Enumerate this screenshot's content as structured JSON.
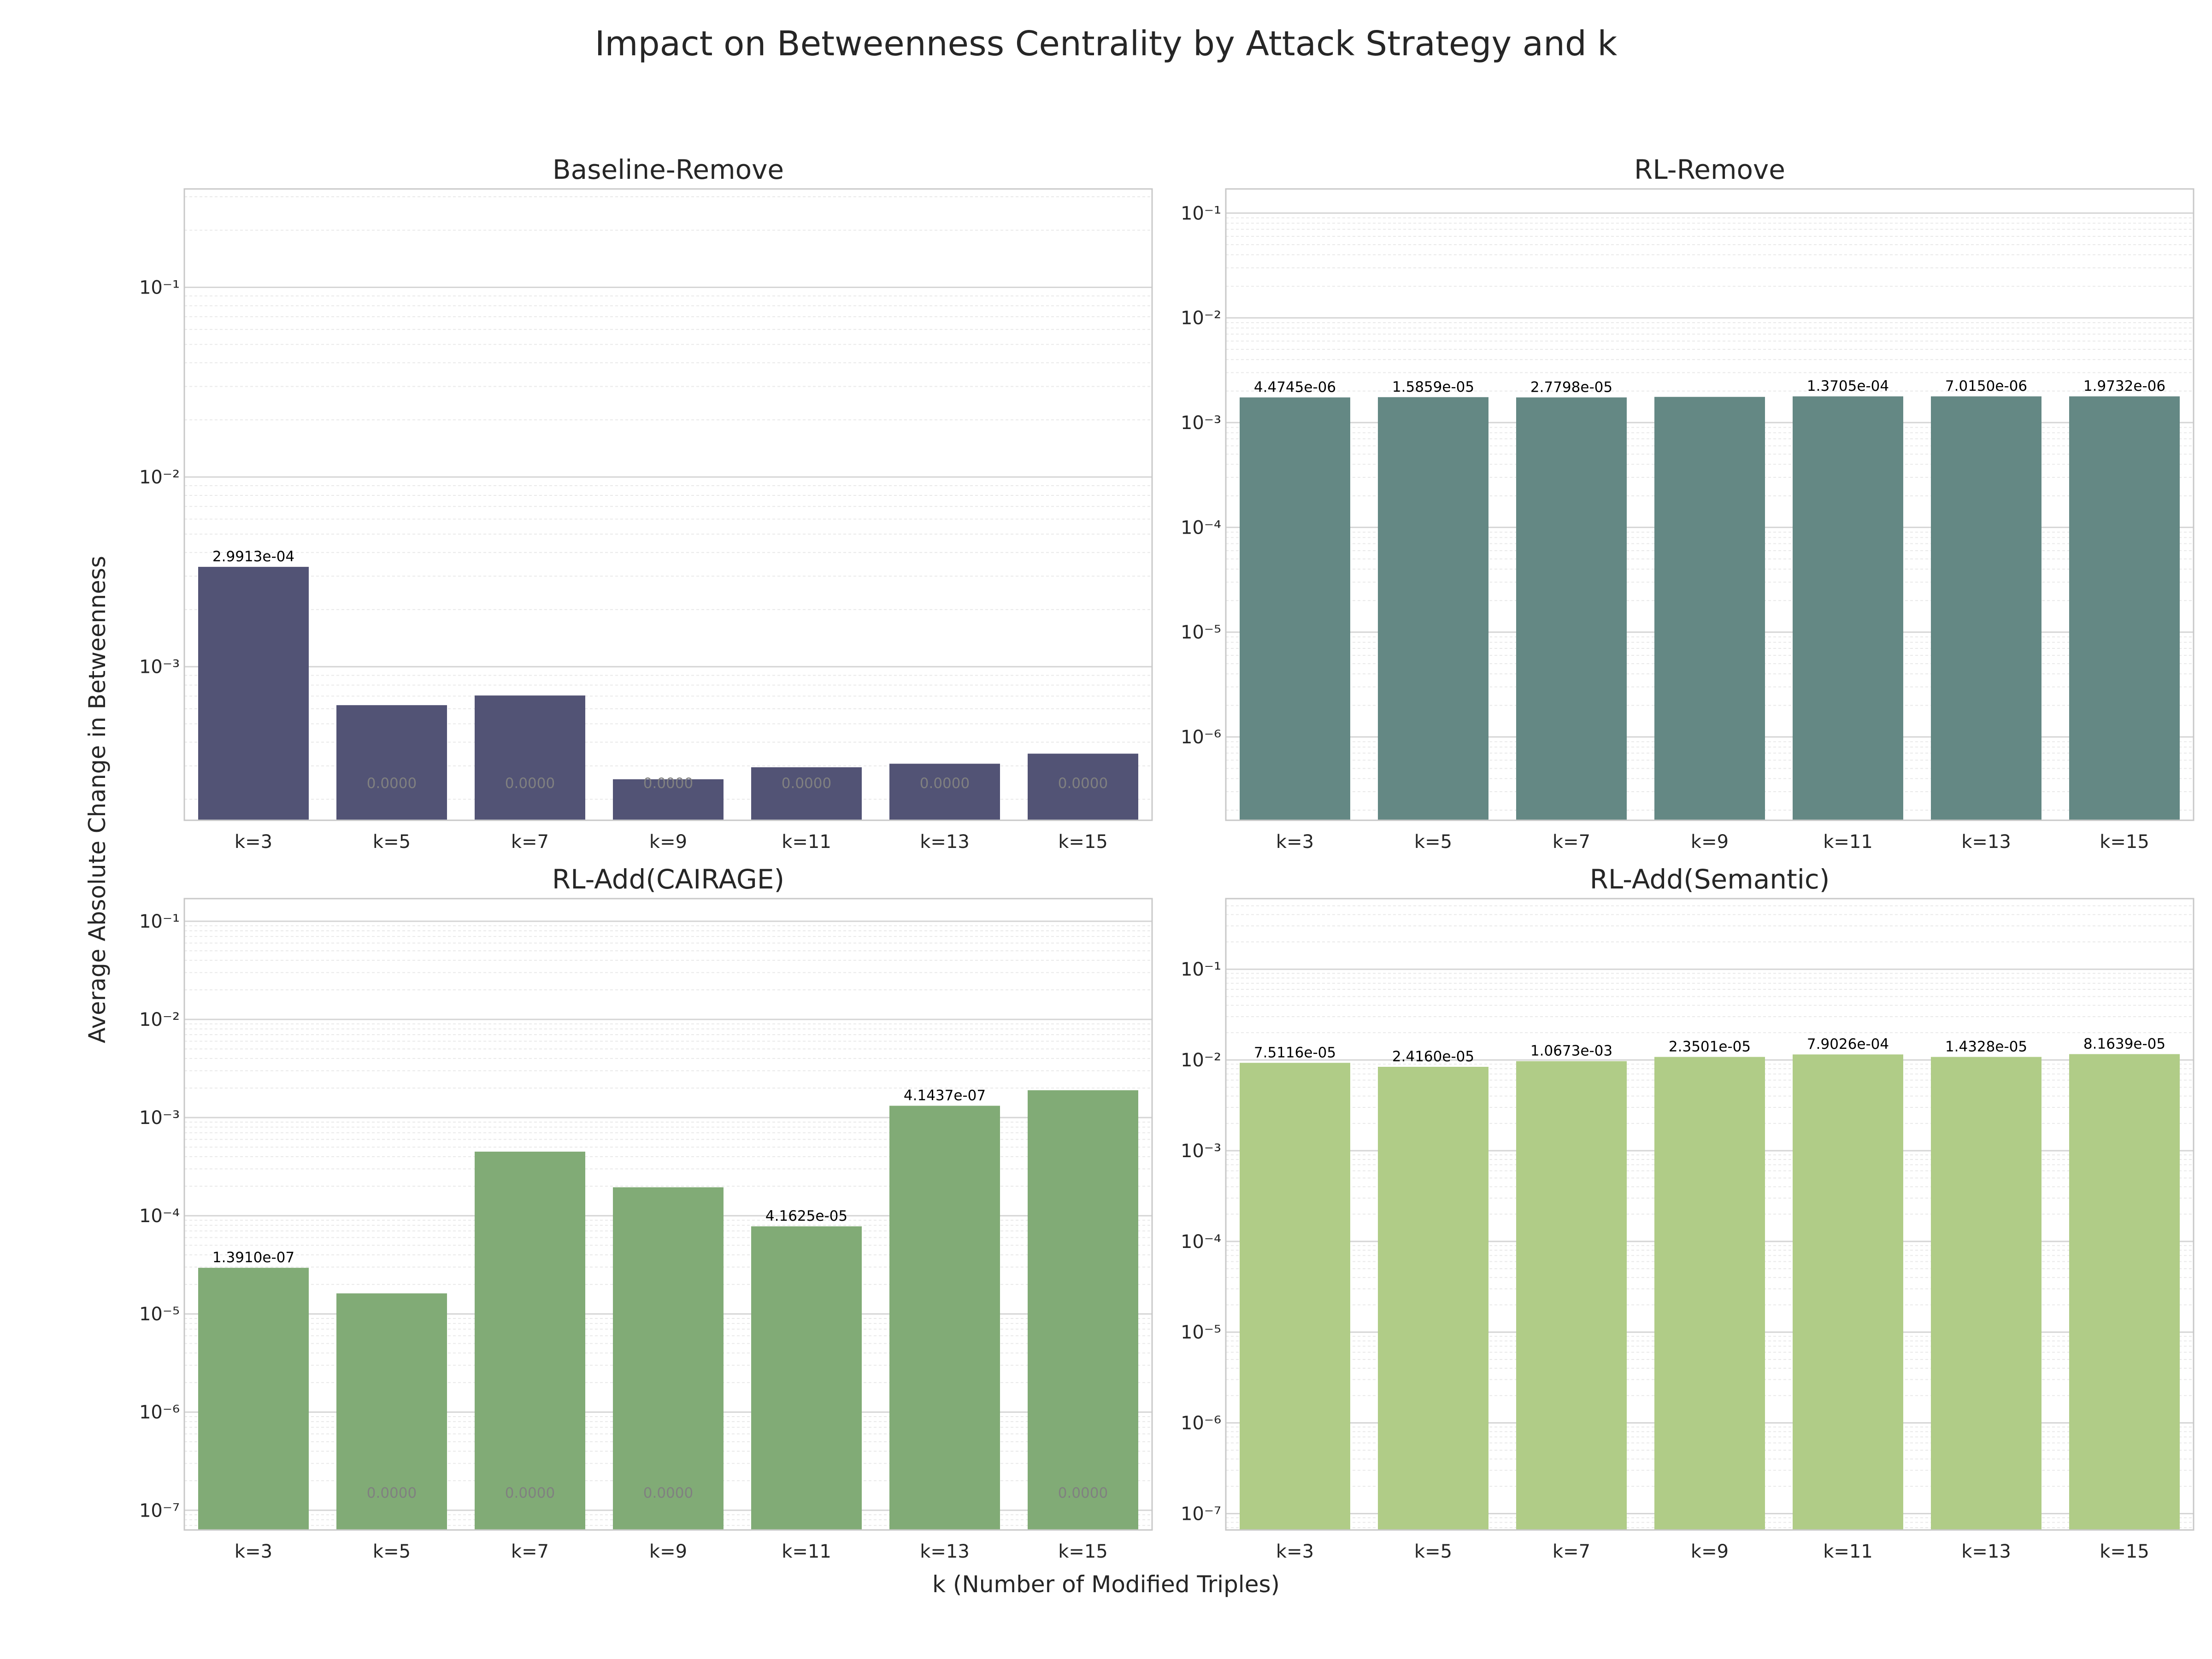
{
  "figure": {
    "title": "Impact on Betweenness Centrality by Attack Strategy and k",
    "xlabel": "k (Number of Modified Triples)",
    "ylabel": "Average Absolute Change in Betweenness"
  },
  "chart_data": [
    {
      "type": "bar",
      "title": "Baseline-Remove",
      "scale": "log",
      "ylim": [
        0.000155,
        0.33
      ],
      "decades": [
        -3,
        -2,
        -1
      ],
      "color": "#525375",
      "categories": [
        "k=3",
        "k=5",
        "k=7",
        "k=9",
        "k=11",
        "k=13",
        "k=15"
      ],
      "values": [
        0.00336,
        0.000627,
        0.000705,
        0.000255,
        0.000295,
        0.000308,
        0.000348
      ],
      "labels": [
        "2.9913e-04",
        "0.0000",
        "0.0000",
        "0.0000",
        "0.0000",
        "0.0000",
        "0.0000"
      ],
      "label_style": [
        "value",
        "zero",
        "zero",
        "zero",
        "zero",
        "zero",
        "zero"
      ]
    },
    {
      "type": "bar",
      "title": "RL-Remove",
      "scale": "log",
      "ylim": [
        1.6e-07,
        0.17
      ],
      "decades": [
        -6,
        -5,
        -4,
        -3,
        -2,
        -1
      ],
      "color": "#648884",
      "categories": [
        "k=3",
        "k=5",
        "k=7",
        "k=9",
        "k=11",
        "k=13",
        "k=15"
      ],
      "values": [
        0.00174,
        0.00175,
        0.00174,
        0.00176,
        0.00178,
        0.00178,
        0.00178
      ],
      "labels": [
        "4.4745e-06",
        "1.5859e-05",
        "2.7798e-05",
        "",
        "1.3705e-04",
        "7.0150e-06",
        "1.9732e-06"
      ],
      "label_style": [
        "value",
        "value",
        "value",
        "value",
        "value",
        "value",
        "value"
      ]
    },
    {
      "type": "bar",
      "title": "RL-Add(CAIRAGE)",
      "scale": "log",
      "ylim": [
        6.3e-08,
        0.17
      ],
      "decades": [
        -7,
        -6,
        -5,
        -4,
        -3,
        -2,
        -1
      ],
      "color": "#81ab76",
      "categories": [
        "k=3",
        "k=5",
        "k=7",
        "k=9",
        "k=11",
        "k=13",
        "k=15"
      ],
      "values": [
        2.95e-05,
        1.62e-05,
        0.00045,
        0.000195,
        7.8e-05,
        0.00132,
        0.0019
      ],
      "labels": [
        "1.3910e-07",
        "0.0000",
        "0.0000",
        "0.0000",
        "4.1625e-05",
        "4.1437e-07",
        "0.0000"
      ],
      "label_style": [
        "value",
        "zero",
        "zero",
        "zero",
        "value",
        "value",
        "zero"
      ]
    },
    {
      "type": "bar",
      "title": "RL-Add(Semantic)",
      "scale": "log",
      "ylim": [
        6.6e-08,
        0.6
      ],
      "decades": [
        -7,
        -6,
        -5,
        -4,
        -3,
        -2,
        -1
      ],
      "color": "#b0cc87",
      "categories": [
        "k=3",
        "k=5",
        "k=7",
        "k=9",
        "k=11",
        "k=13",
        "k=15"
      ],
      "values": [
        0.0093,
        0.0084,
        0.0097,
        0.0108,
        0.0115,
        0.0108,
        0.0116
      ],
      "labels": [
        "7.5116e-05",
        "2.4160e-05",
        "1.0673e-03",
        "2.3501e-05",
        "7.9026e-04",
        "1.4328e-05",
        "8.1639e-05"
      ],
      "label_style": [
        "value",
        "value",
        "value",
        "value",
        "value",
        "value",
        "value"
      ]
    }
  ]
}
